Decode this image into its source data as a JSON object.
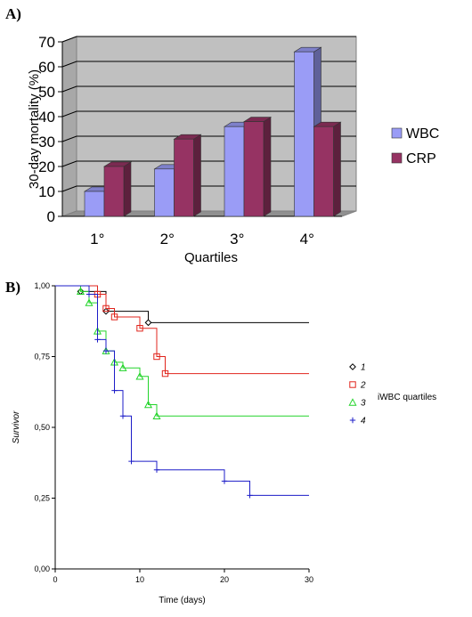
{
  "panel_a_label": "A)",
  "panel_b_label": "B)",
  "chart_data": [
    {
      "type": "bar",
      "categories": [
        "1°",
        "2°",
        "3°",
        "4°"
      ],
      "series": [
        {
          "name": "WBC",
          "values": [
            10,
            19,
            36,
            66
          ],
          "color": "#9a9cf6"
        },
        {
          "name": "CRP",
          "values": [
            20,
            31,
            38,
            36
          ],
          "color": "#963363"
        }
      ],
      "title": "",
      "xlabel": "Quartiles",
      "ylabel": "30-day mortality (%)",
      "ylim": [
        0,
        70
      ],
      "yticks": [
        "0",
        "10",
        "20",
        "30",
        "40",
        "50",
        "60",
        "70"
      ],
      "grid": true,
      "legend": "right",
      "three_d": true
    },
    {
      "type": "line",
      "subtype": "step",
      "title": "",
      "xlabel": "Time (days)",
      "ylabel": "Survivor",
      "xlim": [
        0,
        30
      ],
      "ylim": [
        0,
        1
      ],
      "xticks": [
        "0",
        "10",
        "20",
        "30"
      ],
      "yticks": [
        "0,00",
        "0,25",
        "0,50",
        "0,75",
        "1,00"
      ],
      "legend": "right",
      "legend_title": "iWBC quartiles",
      "series": [
        {
          "name": "1",
          "color": "#000000",
          "marker": "diamond",
          "x": [
            0,
            3,
            6,
            11,
            30
          ],
          "y": [
            1.0,
            0.98,
            0.91,
            0.87,
            0.87
          ],
          "censor_x": [
            3,
            6,
            11
          ]
        },
        {
          "name": "2",
          "color": "#e0241c",
          "marker": "square",
          "x": [
            0,
            5,
            6,
            7,
            10,
            12,
            13,
            30
          ],
          "y": [
            1.0,
            0.97,
            0.92,
            0.89,
            0.85,
            0.75,
            0.69,
            0.69
          ],
          "censor_x": [
            5,
            6,
            7,
            10,
            12,
            13
          ]
        },
        {
          "name": "3",
          "color": "#22d42a",
          "marker": "triangle",
          "x": [
            0,
            3,
            4,
            5,
            6,
            7,
            8,
            10,
            11,
            12,
            30
          ],
          "y": [
            1.0,
            0.98,
            0.94,
            0.84,
            0.77,
            0.73,
            0.71,
            0.68,
            0.58,
            0.54,
            0.54
          ],
          "censor_x": [
            3,
            4,
            5,
            6,
            7,
            8,
            10,
            11,
            12
          ]
        },
        {
          "name": "4",
          "color": "#1c1cc8",
          "marker": "plus",
          "x": [
            0,
            4,
            5,
            6,
            7,
            8,
            9,
            12,
            20,
            23,
            30
          ],
          "y": [
            1.0,
            0.97,
            0.81,
            0.77,
            0.63,
            0.54,
            0.38,
            0.35,
            0.31,
            0.26,
            0.26
          ],
          "censor_x": [
            4,
            5,
            6,
            7,
            8,
            9,
            12,
            20,
            23
          ]
        }
      ]
    }
  ]
}
